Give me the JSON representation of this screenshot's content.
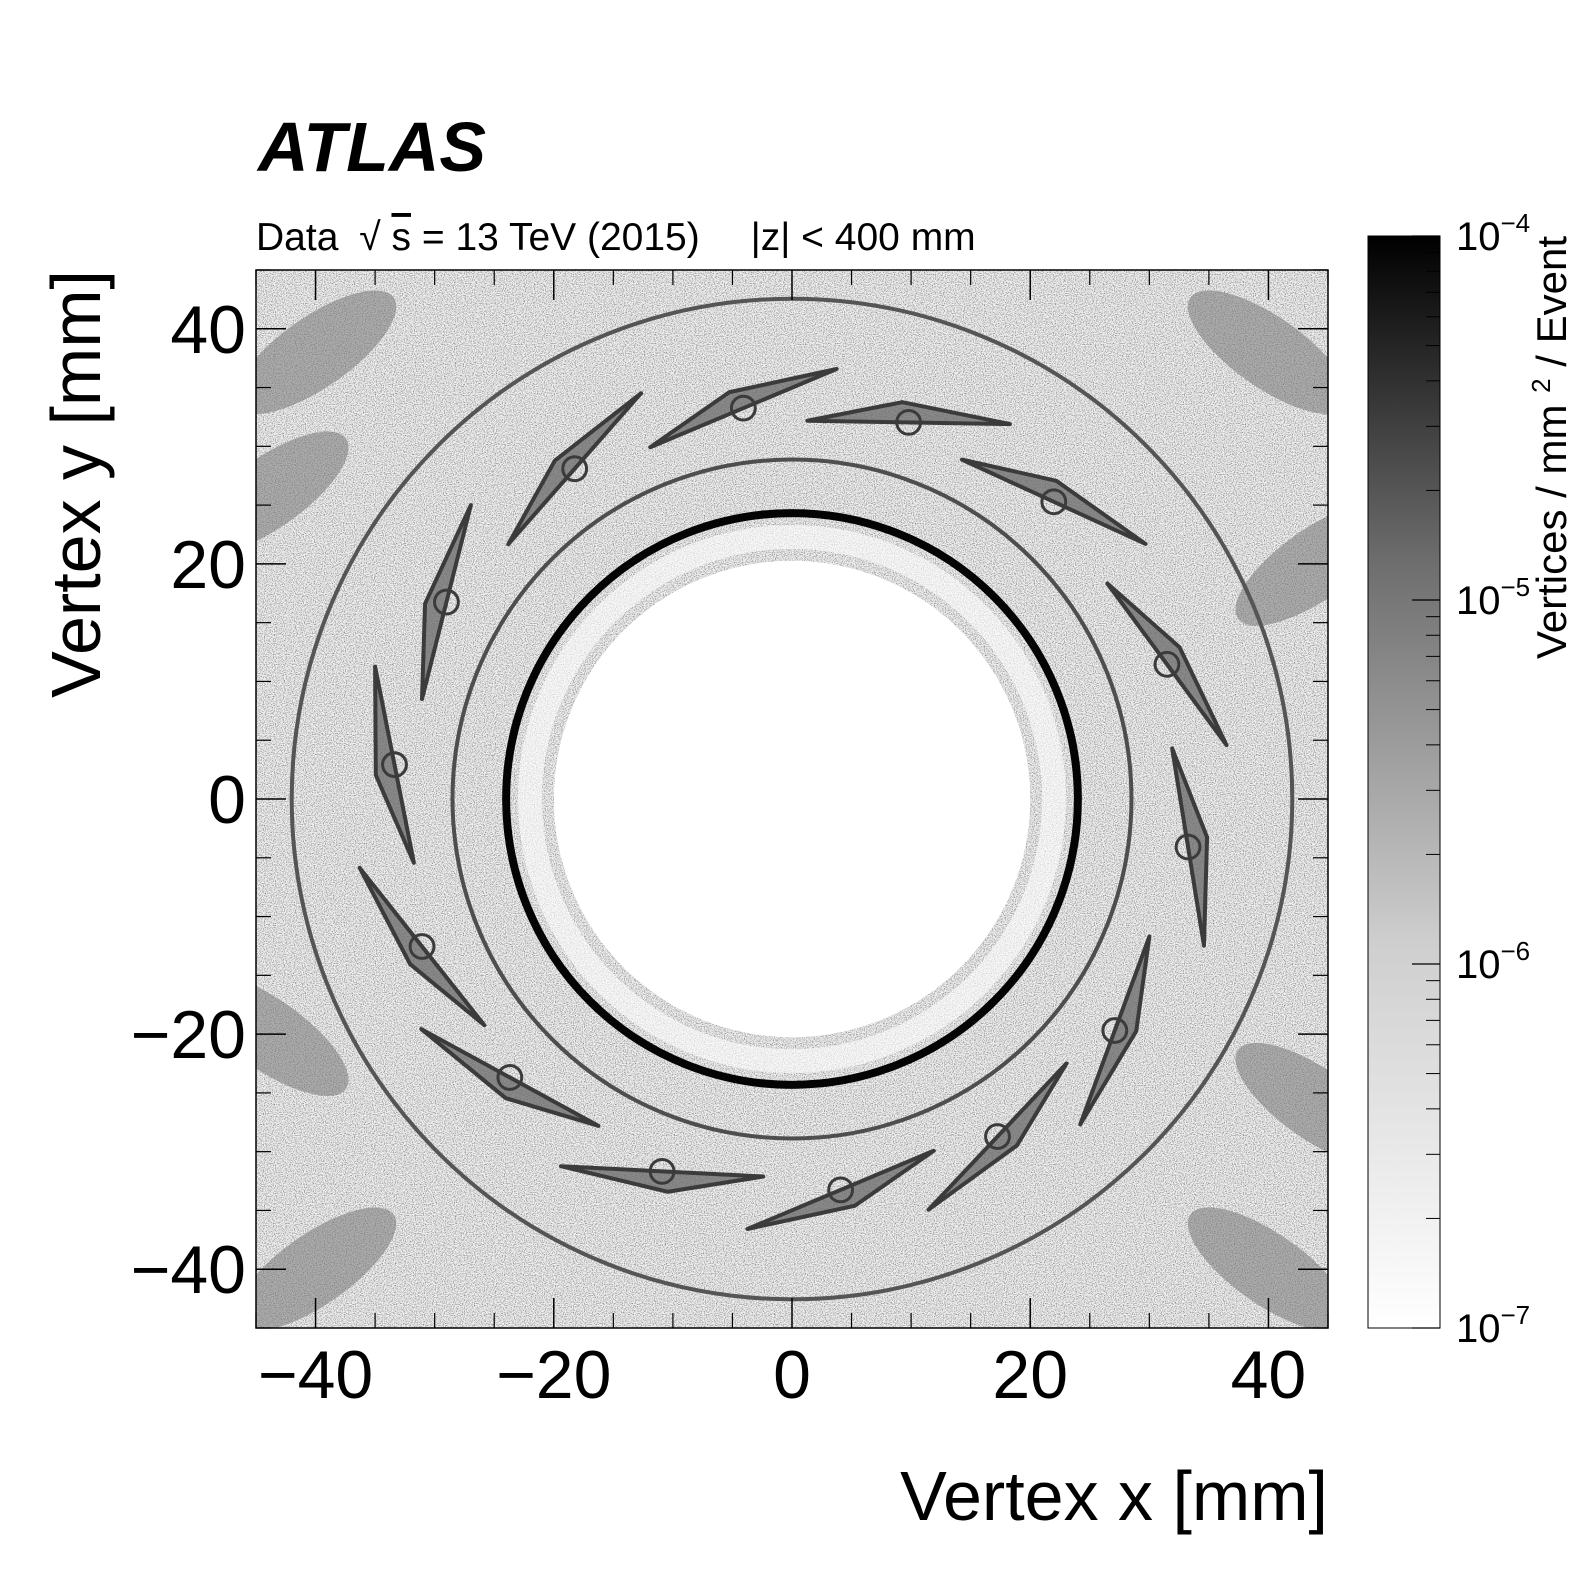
{
  "chart_data": {
    "type": "heatmap",
    "title": "",
    "experiment_label": "ATLAS",
    "subtitle": {
      "prefix": "Data",
      "sqrt_symbol": "√",
      "sqrt_var": "s",
      "energy": " = 13 TeV (2015)",
      "cut": "|z| < 400 mm"
    },
    "xlabel": "Vertex x [mm]",
    "ylabel": "Vertex y [mm]",
    "xlim": [
      -45,
      45
    ],
    "ylim": [
      -45,
      45
    ],
    "x_ticks": [
      -40,
      -20,
      0,
      20,
      40
    ],
    "x_tick_labels": [
      "−40",
      "−20",
      "0",
      "20",
      "40"
    ],
    "y_ticks": [
      -40,
      -20,
      0,
      20,
      40
    ],
    "y_tick_labels": [
      "−40",
      "−20",
      "0",
      "20",
      "40"
    ],
    "colorbar": {
      "label": "Vertices / mm",
      "label_sup": "2",
      "label_suffix": " / Event",
      "scale": "log",
      "range": [
        1e-07,
        0.0001
      ],
      "ticks": [
        {
          "base": "10",
          "exp": "−4",
          "value": 0.0001
        },
        {
          "base": "10",
          "exp": "−5",
          "value": 1e-05
        },
        {
          "base": "10",
          "exp": "−6",
          "value": 1e-06
        },
        {
          "base": "10",
          "exp": "−7",
          "value": 1e-07
        }
      ],
      "colormap": [
        "#ffffff",
        "#000000"
      ]
    },
    "structures": {
      "beam_pipe": {
        "radius": 24,
        "density": 9e-05
      },
      "inner_support": {
        "radius": 28.5,
        "density": 1.2e-05
      },
      "outer_support": {
        "radius": 42,
        "density": 1e-05
      },
      "staves": {
        "count": 14,
        "radius": 33.5,
        "density": 6e-06,
        "cooling_pipe_angles_deg": [
          97,
          73,
          49,
          20,
          353,
          324,
          301,
          277,
          251,
          225,
          202,
          175,
          150,
          123
        ]
      },
      "outer_background_density": 4e-06,
      "uniform_background_density": 3e-07
    }
  }
}
